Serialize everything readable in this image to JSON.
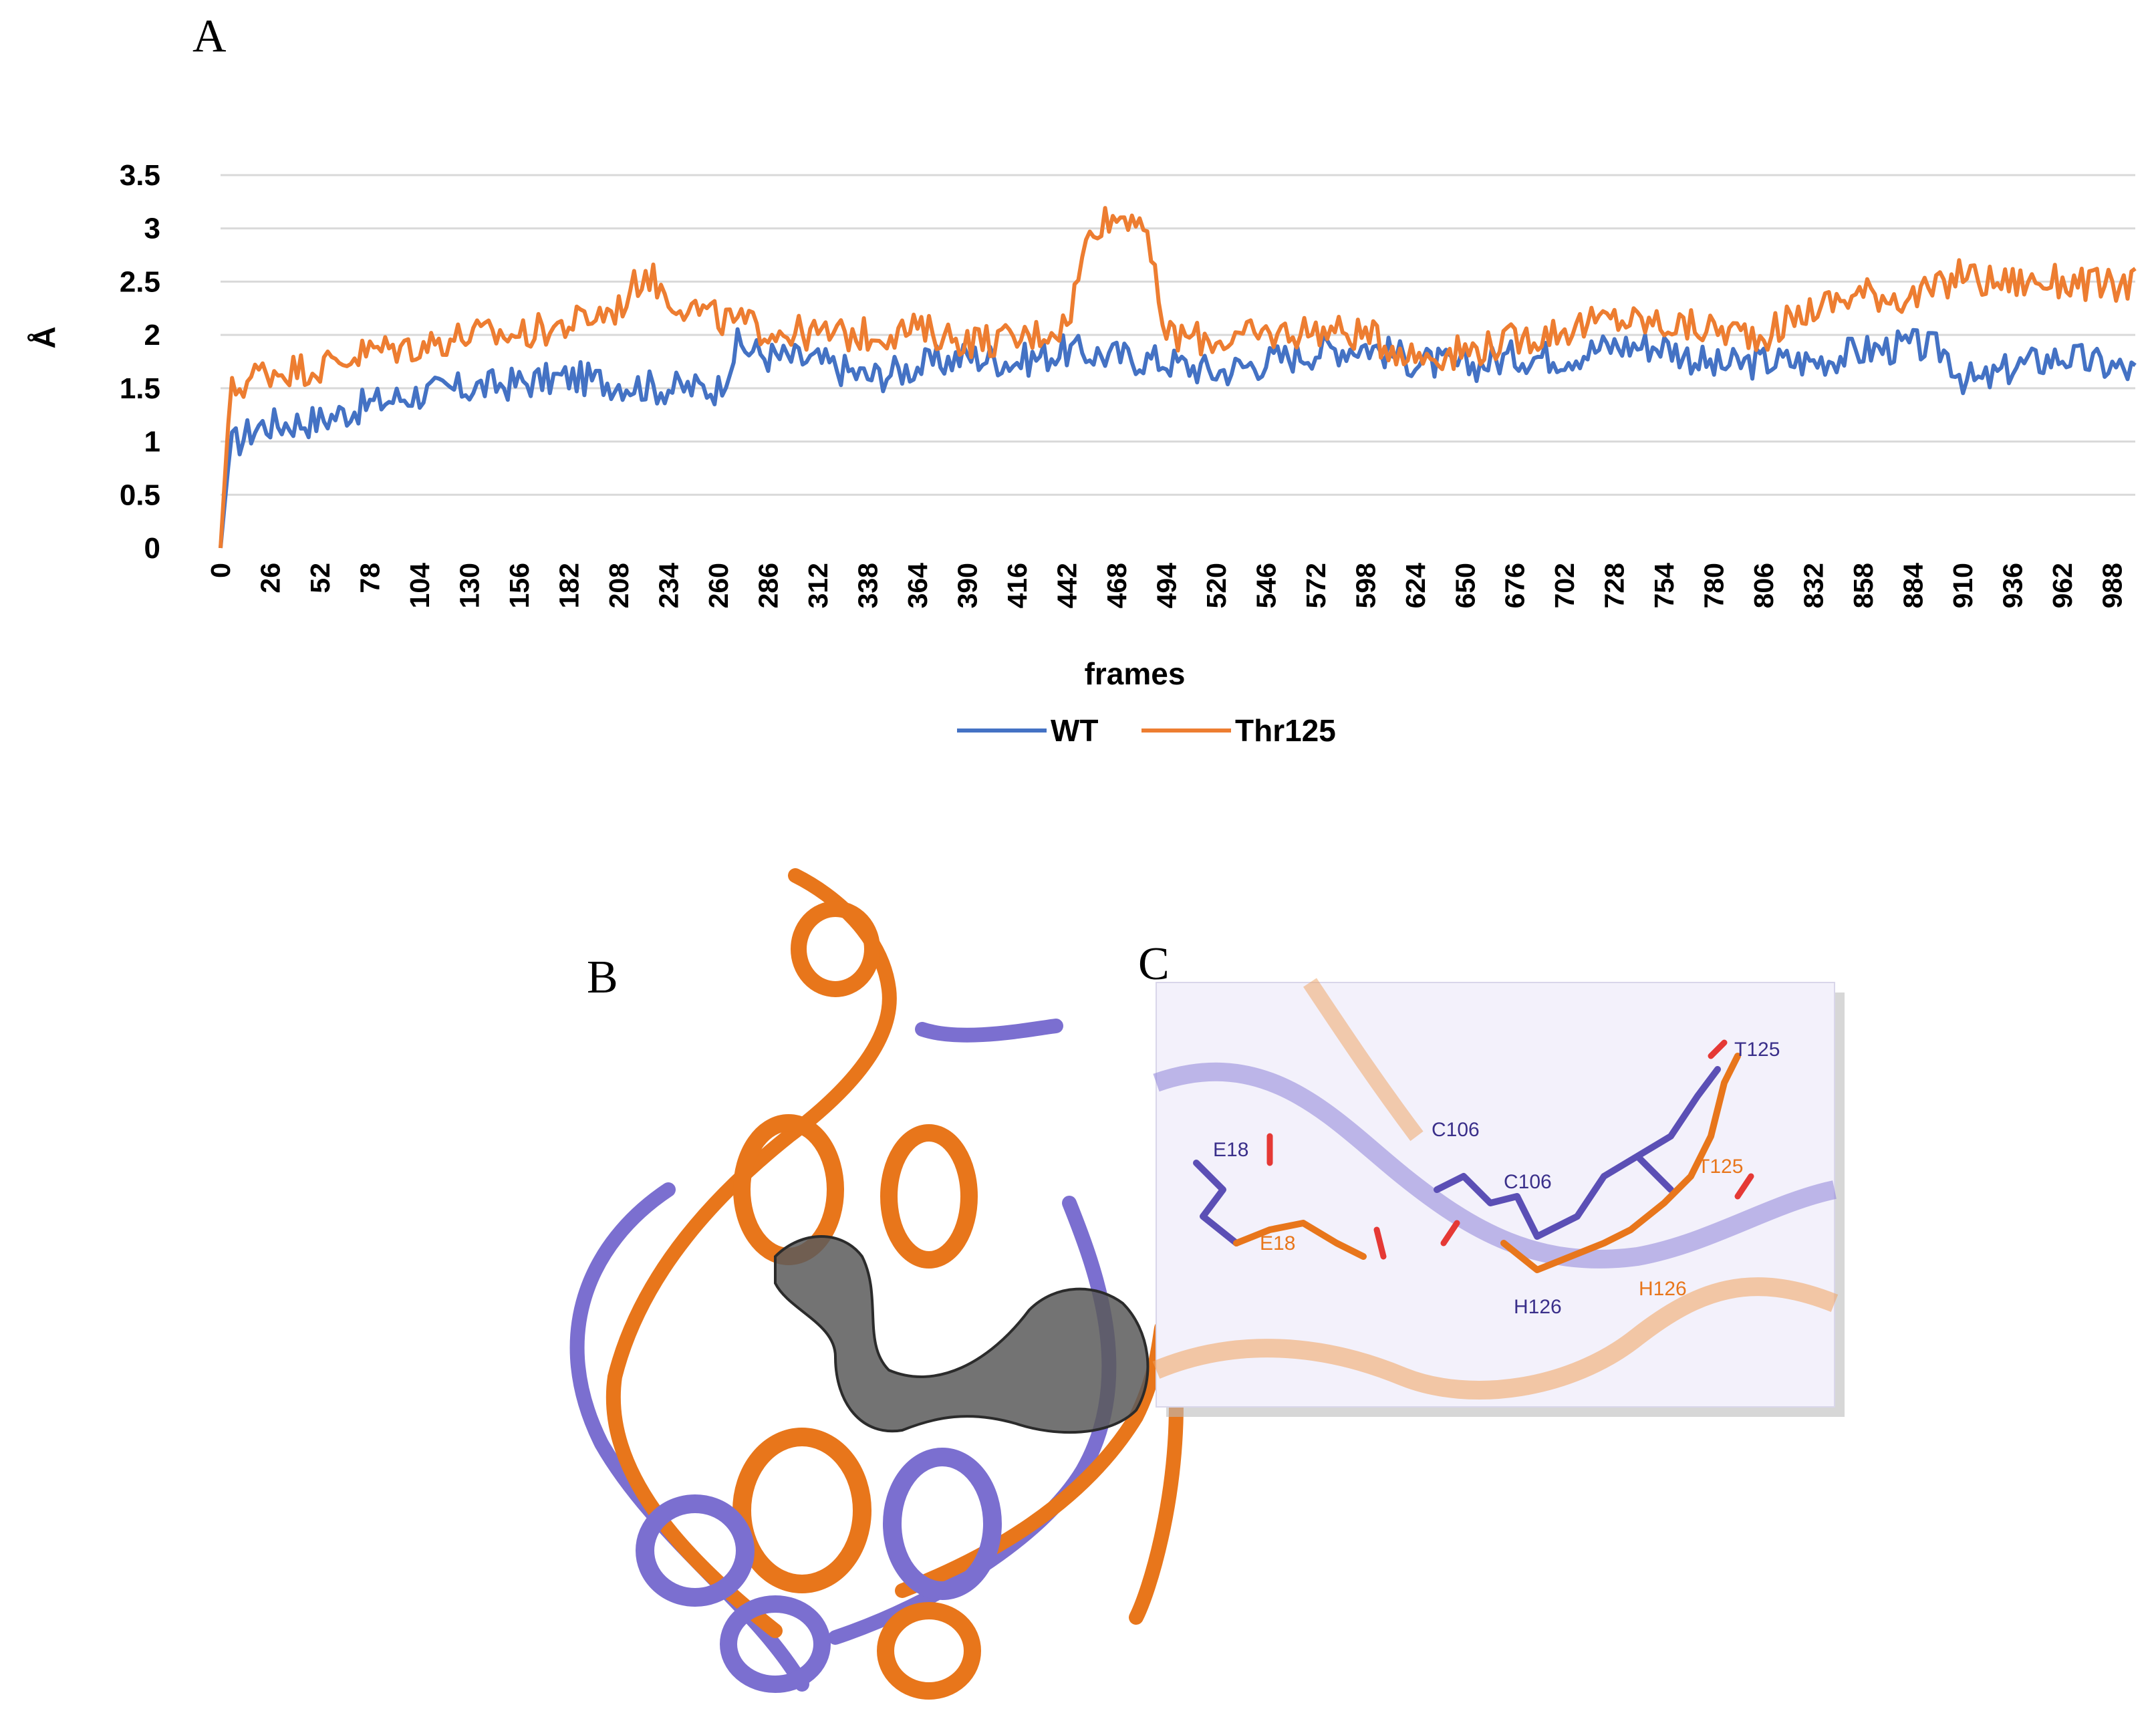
{
  "panels": {
    "a": "A",
    "b": "B",
    "c": "C"
  },
  "colors": {
    "wt": "#4472C4",
    "thr125": "#ED7D31",
    "wt_structure": "#7B6FD0",
    "mut_structure": "#E8761B",
    "pocket": "#555555"
  },
  "chart_data": {
    "type": "line",
    "title": "",
    "xlabel": "frames",
    "ylabel": "Å",
    "ylim": [
      0,
      3.5
    ],
    "xlim": [
      0,
      1000
    ],
    "y_ticks": [
      "0",
      "0.5",
      "1",
      "1.5",
      "2",
      "2.5",
      "3",
      "3.5"
    ],
    "x_ticks": [
      "0",
      "26",
      "52",
      "78",
      "104",
      "130",
      "156",
      "182",
      "208",
      "234",
      "260",
      "286",
      "312",
      "338",
      "364",
      "390",
      "416",
      "442",
      "468",
      "494",
      "520",
      "546",
      "572",
      "598",
      "624",
      "650",
      "676",
      "702",
      "728",
      "754",
      "780",
      "806",
      "832",
      "858",
      "884",
      "910",
      "936",
      "962",
      "988"
    ],
    "grid": true,
    "legend_position": "bottom",
    "series": [
      {
        "name": "WT",
        "x": [
          0,
          5,
          20,
          52,
          78,
          104,
          130,
          156,
          182,
          208,
          230,
          260,
          270,
          286,
          312,
          338,
          364,
          390,
          416,
          442,
          468,
          494,
          520,
          546,
          572,
          598,
          624,
          650,
          676,
          702,
          728,
          754,
          780,
          806,
          832,
          858,
          884,
          900,
          910,
          920,
          936,
          962,
          988,
          1000
        ],
        "values": [
          0.0,
          0.95,
          1.15,
          1.2,
          1.35,
          1.45,
          1.5,
          1.55,
          1.6,
          1.55,
          1.5,
          1.5,
          1.9,
          1.8,
          1.75,
          1.6,
          1.7,
          1.8,
          1.75,
          1.85,
          1.8,
          1.75,
          1.65,
          1.75,
          1.85,
          1.9,
          1.75,
          1.7,
          1.8,
          1.8,
          1.9,
          1.9,
          1.7,
          1.75,
          1.75,
          1.85,
          1.9,
          1.85,
          1.6,
          1.55,
          1.7,
          1.8,
          1.7,
          1.65
        ]
      },
      {
        "name": "Thr125",
        "x": [
          0,
          5,
          20,
          52,
          78,
          104,
          130,
          156,
          182,
          208,
          222,
          234,
          260,
          286,
          312,
          338,
          364,
          390,
          416,
          442,
          455,
          468,
          480,
          488,
          494,
          520,
          546,
          572,
          598,
          624,
          650,
          676,
          702,
          728,
          754,
          780,
          806,
          832,
          858,
          884,
          900,
          910,
          920,
          936,
          962,
          988,
          1000
        ],
        "values": [
          0.0,
          1.45,
          1.65,
          1.7,
          1.85,
          1.9,
          2.0,
          2.0,
          2.1,
          2.25,
          2.6,
          2.35,
          2.15,
          2.05,
          2.0,
          2.0,
          2.05,
          1.95,
          1.95,
          2.1,
          3.05,
          3.1,
          3.15,
          2.5,
          2.0,
          1.95,
          2.0,
          2.05,
          2.0,
          1.8,
          1.85,
          1.95,
          2.05,
          2.15,
          2.1,
          2.05,
          2.0,
          2.25,
          2.4,
          2.35,
          2.45,
          2.6,
          2.5,
          2.5,
          2.5,
          2.45,
          2.5
        ]
      }
    ]
  },
  "structure_c_labels": [
    {
      "text": "E18",
      "tone": "wt"
    },
    {
      "text": "C106",
      "tone": "wt"
    },
    {
      "text": "C106",
      "tone": "wt"
    },
    {
      "text": "T125",
      "tone": "wt"
    },
    {
      "text": "T125",
      "tone": "mut"
    },
    {
      "text": "E18",
      "tone": "mut"
    },
    {
      "text": "H126",
      "tone": "wt"
    },
    {
      "text": "H126",
      "tone": "mut"
    }
  ]
}
